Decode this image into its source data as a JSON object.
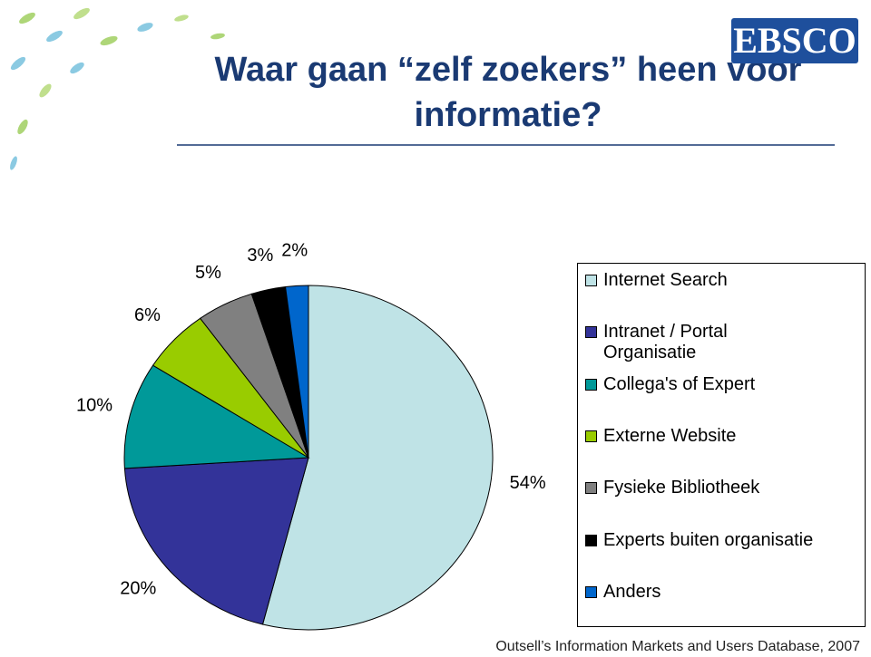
{
  "logo": "EBSCO",
  "chart_data": {
    "type": "pie",
    "title": "Waar gaan “zelf zoekers” heen voor informatie?",
    "categories": [
      "Internet Search",
      "Intranet / Portal Organisatie",
      "Collega's of Expert",
      "Externe Website",
      "Fysieke Bibliotheek",
      "Experts buiten organisatie",
      "Anders"
    ],
    "values": [
      54,
      20,
      10,
      6,
      5,
      3,
      2
    ],
    "value_labels": [
      "54%",
      "20%",
      "10%",
      "6%",
      "5%",
      "3%",
      "2%"
    ],
    "colors": [
      "#bfe3e6",
      "#333399",
      "#009999",
      "#99cc00",
      "#808080",
      "#000000",
      "#0066cc"
    ],
    "legend": "right",
    "source": "Outsell’s Information Markets and Users Database, 2007"
  }
}
